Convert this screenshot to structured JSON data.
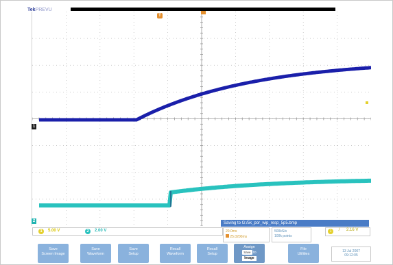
{
  "header": {
    "brand": "Tek",
    "brand_sub": "PREVU"
  },
  "markers": {
    "trigger_pos": "T",
    "ch1": "1",
    "ch2": "2"
  },
  "status": {
    "ch1_badge": "1",
    "ch1_scale": "5.00 V",
    "ch2_badge": "2",
    "ch2_scale": "2.00 V"
  },
  "saving_message": "Saving to G:/5k_por_wip_resp_5p5.bmp",
  "timebase": {
    "scale": "20.0ms",
    "position": "25.0200ms"
  },
  "acquisition": {
    "rate": "500kS/s",
    "points": "100k points"
  },
  "trigger": {
    "channel": "1",
    "slope": "/",
    "level": "2.16 V"
  },
  "datetime": {
    "date": "13 Jul  2007",
    "time": "09:12:05"
  },
  "menu": [
    {
      "line1": "Save",
      "line2": "Screen Image"
    },
    {
      "line1": "Save",
      "line2": "Waveform"
    },
    {
      "line1": "Save",
      "line2": "Setup"
    },
    {
      "line1": "Recall",
      "line2": "Waveform"
    },
    {
      "line1": "Recall",
      "line2": "Setup"
    },
    {
      "line1": "Assign",
      "save_tag": "Save",
      "to": "to",
      "target": "Image"
    },
    {
      "line1": "File",
      "line2": "Utilities"
    }
  ],
  "colors": {
    "ch1": "#1a1faa",
    "ch2": "#29c2be",
    "trigger": "#e48f2d",
    "menu": "#8ab2dd"
  }
}
